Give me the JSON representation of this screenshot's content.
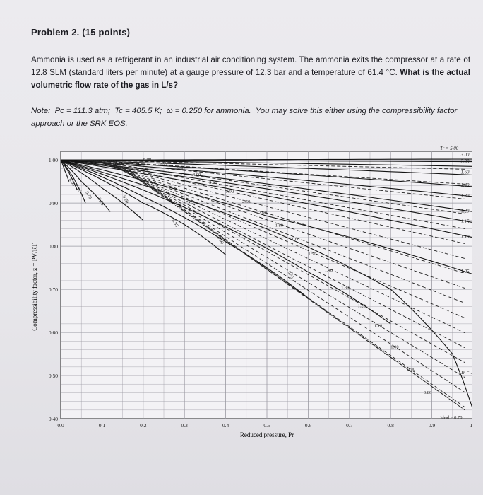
{
  "problem": {
    "title": "Problem 2. (15 points)",
    "statement_pre": "Ammonia is used as a refrigerant in an industrial air conditioning system. The ammonia exits the compressor at a rate of 12.8 SLM (standard liters per minute) at a gauge pressure of 12.3 bar and a temperature of 61.4 °C. ",
    "statement_question": "What is the actual volumetric flow rate of the gas in L/s?",
    "note_label": "Note:",
    "note_pc": "Pc = 111.3 atm;",
    "note_tc": "Tc = 405.5 K;",
    "note_omega": "ω = 0.250 for ammonia.",
    "note_rest": "You may solve this either using the compressibility factor approach or the SRK EOS."
  },
  "chart_data": {
    "type": "line",
    "title": "",
    "xlabel": "Reduced pressure, Pr",
    "ylabel": "Compressibility factor, z = PV/RT",
    "xlim": [
      0,
      1.0
    ],
    "ylim": [
      0.4,
      1.02
    ],
    "x_ticks": [
      "0.0",
      "0.1",
      "0.2",
      "0.3",
      "0.4",
      "0.5",
      "0.6",
      "0.7",
      "0.8",
      "0.9",
      "1.0"
    ],
    "y_ticks": [
      "0.40",
      "0.50",
      "0.60",
      "0.70",
      "0.80",
      "0.90",
      "1.00"
    ],
    "grid": true,
    "isotherm_labels_top": [
      "Tr = 5.00",
      "3.00",
      "2.00",
      "1.60",
      "1.40",
      "1.30",
      "1.20",
      "1.15",
      "1.10",
      "1.05",
      "Tr = 1.00"
    ],
    "isotherms": [
      {
        "name": "5.00",
        "x": [
          0,
          1.0
        ],
        "y": [
          1.0,
          1.002
        ]
      },
      {
        "name": "3.00",
        "x": [
          0,
          1.0
        ],
        "y": [
          1.0,
          0.996
        ]
      },
      {
        "name": "2.00",
        "x": [
          0,
          1.0
        ],
        "y": [
          1.0,
          0.985
        ]
      },
      {
        "name": "1.60",
        "x": [
          0,
          1.0
        ],
        "y": [
          1.0,
          0.965
        ]
      },
      {
        "name": "1.40",
        "x": [
          0,
          1.0
        ],
        "y": [
          1.0,
          0.938
        ]
      },
      {
        "name": "1.30",
        "x": [
          0,
          1.0
        ],
        "y": [
          1.0,
          0.915
        ]
      },
      {
        "name": "1.20",
        "x": [
          0,
          1.0
        ],
        "y": [
          1.0,
          0.88
        ]
      },
      {
        "name": "1.15",
        "x": [
          0,
          1.0
        ],
        "y": [
          1.0,
          0.855
        ]
      },
      {
        "name": "1.10",
        "x": [
          0,
          1.0
        ],
        "y": [
          1.0,
          0.82
        ]
      },
      {
        "name": "1.05",
        "x": [
          0,
          0.5,
          1.0
        ],
        "y": [
          1.0,
          0.87,
          0.735
        ]
      },
      {
        "name": "1.00",
        "x": [
          0,
          0.5,
          0.8,
          0.95,
          1.0
        ],
        "y": [
          1.0,
          0.84,
          0.7,
          0.55,
          0.42
        ]
      },
      {
        "name": "0.95",
        "x": [
          0,
          0.3,
          0.6,
          0.8
        ],
        "y": [
          1.0,
          0.89,
          0.74,
          0.62
        ]
      },
      {
        "name": "0.90",
        "x": [
          0,
          0.2,
          0.4,
          0.6
        ],
        "y": [
          1.0,
          0.915,
          0.81,
          0.68
        ]
      },
      {
        "name": "0.85",
        "x": [
          0,
          0.2,
          0.3,
          0.4
        ],
        "y": [
          1.0,
          0.9,
          0.85,
          0.78
        ]
      },
      {
        "name": "0.80",
        "x": [
          0,
          0.1,
          0.2
        ],
        "y": [
          1.0,
          0.935,
          0.86
        ]
      },
      {
        "name": "0.75",
        "x": [
          0,
          0.05,
          0.12
        ],
        "y": [
          1.0,
          0.95,
          0.88
        ]
      },
      {
        "name": "0.70",
        "x": [
          0,
          0.03,
          0.06
        ],
        "y": [
          1.0,
          0.96,
          0.9
        ]
      },
      {
        "name": "0.65",
        "x": [
          0,
          0.02,
          0.04
        ],
        "y": [
          1.0,
          0.97,
          0.93
        ]
      },
      {
        "name": "0.60",
        "x": [
          0,
          0.01,
          0.02
        ],
        "y": [
          1.0,
          0.975,
          0.95
        ]
      }
    ],
    "isochore_labels": [
      "8.00",
      "6.00",
      "5.00",
      "4.00",
      "3.50",
      "3.00",
      "2.50",
      "2.00",
      "1.80",
      "1.60",
      "1.50",
      "1.40",
      "1.30",
      "1.20",
      "1.10",
      "1.00",
      "0.90",
      "0.80",
      "Ideal = 0.70"
    ],
    "curve_inline_labels": [
      "0.95",
      "0.90",
      "0.85",
      "0.80",
      "0.75",
      "0.70",
      "0.65",
      "0.60"
    ]
  }
}
